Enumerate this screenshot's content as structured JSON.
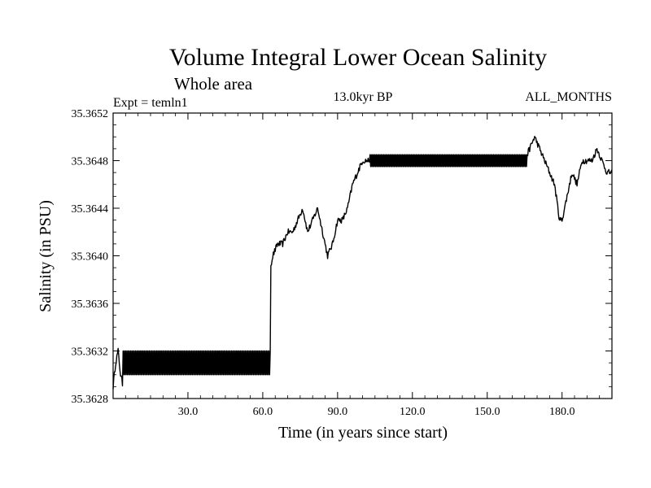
{
  "chart_data": {
    "type": "line",
    "title": "Volume Integral Lower Ocean Salinity",
    "subtitle": "Whole area",
    "experiment_label": "Expt = temln1",
    "period_label": "13.0kyr BP",
    "season_label": "ALL_MONTHS",
    "xlabel": "Time (in years since start)",
    "ylabel": "Salinity (in PSU)",
    "xlim": [
      0,
      200
    ],
    "ylim": [
      35.3628,
      35.3652
    ],
    "x_ticks": [
      30,
      60,
      90,
      120,
      150,
      180
    ],
    "x_tick_labels": [
      "30.0",
      "60.0",
      "90.0",
      "120.0",
      "150.0",
      "180.0"
    ],
    "y_ticks": [
      35.3628,
      35.3632,
      35.3636,
      35.364,
      35.3644,
      35.3648,
      35.3652
    ],
    "y_tick_labels": [
      "35.3628",
      "35.3632",
      "35.3636",
      "35.3640",
      "35.3644",
      "35.3648",
      "35.3652"
    ],
    "grid": false,
    "series": [
      {
        "name": "Salinity",
        "color": "#000000",
        "x": [
          0,
          1,
          2,
          3,
          4,
          5,
          8,
          12,
          16,
          20,
          24,
          28,
          32,
          36,
          40,
          44,
          48,
          52,
          56,
          60,
          62,
          62.5,
          63,
          64,
          66,
          68,
          70,
          72,
          74,
          76,
          78,
          80,
          82,
          84,
          86,
          88,
          90,
          92,
          94,
          96,
          98,
          100,
          102,
          104,
          110,
          120,
          130,
          140,
          150,
          160,
          165,
          167,
          169,
          171,
          173,
          175,
          177,
          179,
          180,
          182,
          184,
          186,
          188,
          190,
          192,
          194,
          196,
          198,
          200
        ],
        "values": [
          35.3629,
          35.3631,
          35.3632,
          35.363,
          35.3629,
          35.3631,
          35.3631,
          35.3631,
          35.3631,
          35.3631,
          35.3631,
          35.3631,
          35.3631,
          35.3631,
          35.3631,
          35.3631,
          35.3631,
          35.3631,
          35.3631,
          35.3631,
          35.3631,
          35.3634,
          35.3639,
          35.364,
          35.3641,
          35.3641,
          35.3642,
          35.3642,
          35.3643,
          35.3644,
          35.3642,
          35.3643,
          35.3644,
          35.3642,
          35.364,
          35.3641,
          35.3643,
          35.3643,
          35.3644,
          35.3646,
          35.3647,
          35.3648,
          35.3648,
          35.3648,
          35.3648,
          35.3648,
          35.3648,
          35.3648,
          35.3648,
          35.3648,
          35.3648,
          35.3649,
          35.365,
          35.3649,
          35.3648,
          35.3647,
          35.3646,
          35.3643,
          35.3643,
          35.3645,
          35.3647,
          35.3646,
          35.3648,
          35.3648,
          35.3648,
          35.3649,
          35.3648,
          35.3647,
          35.3647
        ],
        "oscillation_bands": [
          {
            "x_start": 4,
            "x_end": 63,
            "low": 35.363,
            "high": 35.3632
          },
          {
            "x_start": 103,
            "x_end": 166,
            "low": 35.36475,
            "high": 35.36485
          }
        ]
      }
    ]
  }
}
